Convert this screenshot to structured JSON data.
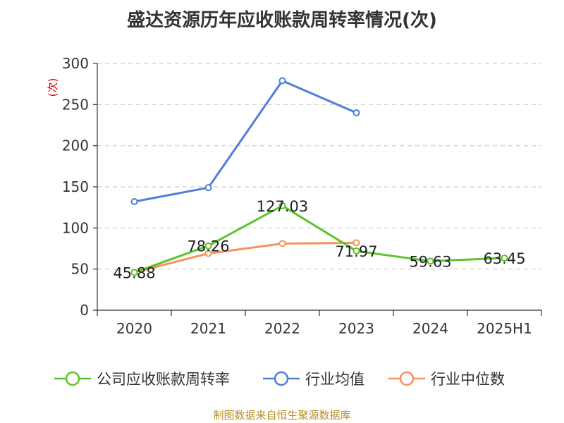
{
  "title": "盛达资源历年应收账款周转率情况(次)",
  "source": "制图数据来自恒生聚源数据库",
  "chart_data": {
    "type": "line",
    "title": "盛达资源历年应收账款周转率情况(次)",
    "ylabel": "(次)",
    "xlabel": "",
    "categories": [
      "2020",
      "2021",
      "2022",
      "2023",
      "2024",
      "2025H1"
    ],
    "ylim": [
      0,
      300
    ],
    "yticks": [
      0,
      50,
      100,
      150,
      200,
      250,
      300
    ],
    "grid": true,
    "legend_position": "bottom",
    "series": [
      {
        "name": "公司应收账款周转率",
        "color": "#5cc42c",
        "values": [
          45.88,
          78.26,
          127.03,
          71.97,
          59.63,
          63.45
        ],
        "data_labels": [
          "45.88",
          "78.26",
          "127.03",
          "71.97",
          "59.63",
          "63.45"
        ]
      },
      {
        "name": "行业均值",
        "color": "#4f7fd9",
        "values": [
          132,
          149,
          279,
          240,
          null,
          null
        ]
      },
      {
        "name": "行业中位数",
        "color": "#f5925e",
        "values": [
          46,
          69,
          81,
          82,
          null,
          null
        ]
      }
    ]
  }
}
